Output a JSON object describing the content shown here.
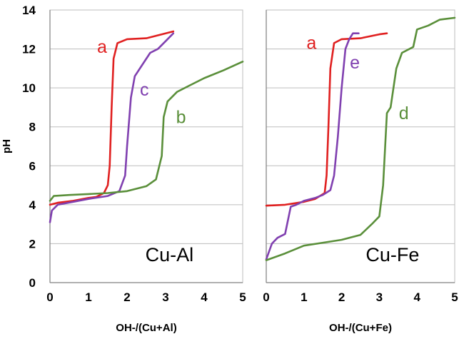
{
  "chart_data": [
    {
      "type": "line",
      "panel_label": "Cu-Al",
      "xlabel": "OH-/(Cu+Al)",
      "ylabel": "pH",
      "xlim": [
        0,
        5
      ],
      "ylim": [
        0,
        14
      ],
      "x_ticks": [
        "0",
        "1",
        "2",
        "3",
        "4",
        "5"
      ],
      "y_ticks": [
        "0",
        "2",
        "4",
        "6",
        "8",
        "10",
        "12",
        "14"
      ],
      "grid": "horizontal",
      "series": [
        {
          "name": "a",
          "color": "#e02020",
          "points": [
            [
              0.0,
              4.0
            ],
            [
              0.2,
              4.1
            ],
            [
              0.6,
              4.2
            ],
            [
              1.0,
              4.35
            ],
            [
              1.2,
              4.4
            ],
            [
              1.4,
              4.6
            ],
            [
              1.5,
              5.0
            ],
            [
              1.55,
              6.0
            ],
            [
              1.6,
              9.0
            ],
            [
              1.65,
              11.5
            ],
            [
              1.75,
              12.3
            ],
            [
              2.0,
              12.5
            ],
            [
              2.5,
              12.55
            ],
            [
              2.8,
              12.7
            ],
            [
              3.2,
              12.9
            ]
          ]
        },
        {
          "name": "c",
          "color": "#8040b0",
          "points": [
            [
              0.0,
              3.1
            ],
            [
              0.05,
              3.7
            ],
            [
              0.2,
              4.0
            ],
            [
              0.6,
              4.15
            ],
            [
              1.0,
              4.3
            ],
            [
              1.5,
              4.45
            ],
            [
              1.8,
              4.7
            ],
            [
              1.95,
              5.5
            ],
            [
              2.0,
              7.0
            ],
            [
              2.1,
              9.5
            ],
            [
              2.2,
              10.6
            ],
            [
              2.4,
              11.2
            ],
            [
              2.6,
              11.8
            ],
            [
              2.8,
              12.0
            ],
            [
              3.0,
              12.4
            ],
            [
              3.2,
              12.8
            ]
          ]
        },
        {
          "name": "b",
          "color": "#5a8f3a",
          "points": [
            [
              0.0,
              4.2
            ],
            [
              0.1,
              4.45
            ],
            [
              0.5,
              4.5
            ],
            [
              1.0,
              4.55
            ],
            [
              1.5,
              4.6
            ],
            [
              2.0,
              4.7
            ],
            [
              2.5,
              4.95
            ],
            [
              2.75,
              5.3
            ],
            [
              2.9,
              6.5
            ],
            [
              2.95,
              8.5
            ],
            [
              3.05,
              9.3
            ],
            [
              3.3,
              9.8
            ],
            [
              3.6,
              10.1
            ],
            [
              4.0,
              10.5
            ],
            [
              4.5,
              10.9
            ],
            [
              5.0,
              11.35
            ]
          ]
        }
      ]
    },
    {
      "type": "line",
      "panel_label": "Cu-Fe",
      "xlabel": "OH-/(Cu+Fe)",
      "ylabel": "",
      "xlim": [
        0,
        5
      ],
      "ylim": [
        0,
        14
      ],
      "x_ticks": [
        "0",
        "1",
        "2",
        "3",
        "4",
        "5"
      ],
      "grid": "horizontal",
      "series": [
        {
          "name": "a",
          "color": "#e02020",
          "points": [
            [
              0.0,
              3.95
            ],
            [
              0.5,
              4.0
            ],
            [
              1.0,
              4.15
            ],
            [
              1.3,
              4.3
            ],
            [
              1.55,
              4.6
            ],
            [
              1.6,
              5.5
            ],
            [
              1.65,
              8.0
            ],
            [
              1.7,
              11.0
            ],
            [
              1.8,
              12.3
            ],
            [
              2.0,
              12.5
            ],
            [
              2.5,
              12.55
            ],
            [
              3.0,
              12.75
            ],
            [
              3.2,
              12.8
            ]
          ]
        },
        {
          "name": "e",
          "color": "#8040b0",
          "points": [
            [
              0.0,
              1.2
            ],
            [
              0.15,
              2.0
            ],
            [
              0.3,
              2.3
            ],
            [
              0.5,
              2.5
            ],
            [
              0.65,
              3.9
            ],
            [
              0.8,
              4.0
            ],
            [
              1.0,
              4.2
            ],
            [
              1.3,
              4.35
            ],
            [
              1.5,
              4.5
            ],
            [
              1.7,
              4.75
            ],
            [
              1.8,
              5.5
            ],
            [
              1.9,
              7.5
            ],
            [
              2.0,
              10.0
            ],
            [
              2.1,
              12.0
            ],
            [
              2.2,
              12.5
            ],
            [
              2.3,
              12.8
            ],
            [
              2.45,
              12.8
            ]
          ]
        },
        {
          "name": "d",
          "color": "#5a8f3a",
          "points": [
            [
              0.0,
              1.15
            ],
            [
              0.5,
              1.5
            ],
            [
              1.0,
              1.9
            ],
            [
              1.5,
              2.05
            ],
            [
              2.0,
              2.2
            ],
            [
              2.5,
              2.45
            ],
            [
              2.8,
              3.0
            ],
            [
              3.0,
              3.4
            ],
            [
              3.1,
              5.0
            ],
            [
              3.2,
              8.7
            ],
            [
              3.3,
              9.0
            ],
            [
              3.45,
              11.0
            ],
            [
              3.6,
              11.8
            ],
            [
              3.9,
              12.1
            ],
            [
              4.0,
              13.0
            ],
            [
              4.3,
              13.2
            ],
            [
              4.6,
              13.5
            ],
            [
              5.0,
              13.6
            ]
          ]
        }
      ]
    }
  ]
}
